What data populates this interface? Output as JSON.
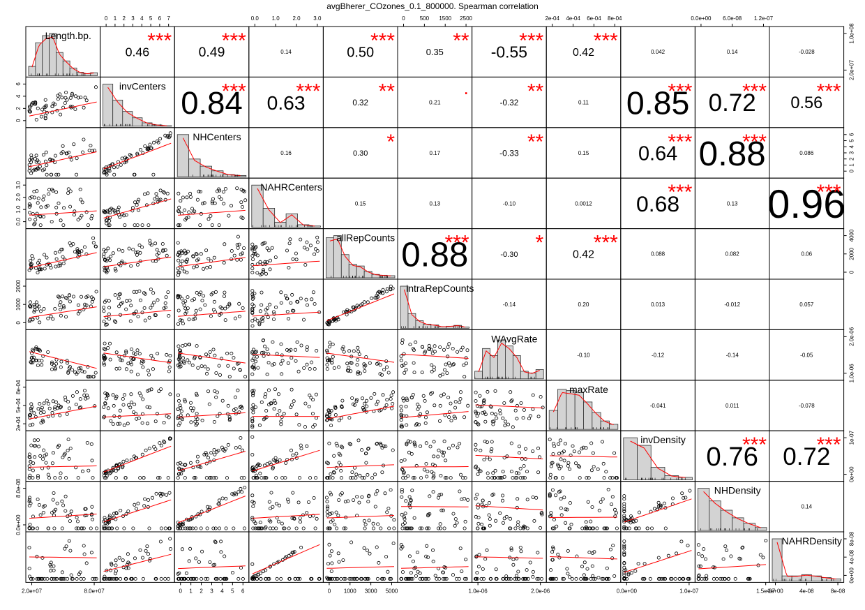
{
  "chart_data": {
    "type": "scatter",
    "subtype": "correlation-matrix",
    "title": "avgBherer_COzones_0.1_800000. Spearman correlation",
    "variables": [
      "Length.bp.",
      "invCenters",
      "NHCenters",
      "NAHRCenters",
      "allRepCounts",
      "intraRepCounts",
      "WAvgRate",
      "maxRate",
      "invDensity",
      "NHDensity",
      "NAHRDensity"
    ],
    "ranges": [
      [
        0,
        125000000.0
      ],
      [
        0,
        7
      ],
      [
        0,
        6
      ],
      [
        0,
        3
      ],
      [
        0,
        5000
      ],
      [
        0,
        2600
      ],
      [
        5e-07,
        2.6e-06
      ],
      [
        0.0002,
        0.00085
      ],
      [
        0,
        1.3e-07
      ],
      [
        0,
        1e-07
      ],
      [
        0,
        9e-08
      ]
    ],
    "correlations": [
      [
        "0.46",
        "0.49",
        "0.14",
        "0.50",
        "0.35",
        "-0.55",
        "0.42",
        "0.042",
        "0.14",
        "-0.028"
      ],
      [
        "0.84",
        "0.63",
        "0.32",
        "0.21",
        "-0.32",
        "0.11",
        "0.85",
        "0.72",
        "0.56"
      ],
      [
        "0.16",
        "0.30",
        "0.17",
        "-0.33",
        "0.15",
        "0.64",
        "0.88",
        "0.086"
      ],
      [
        "0.15",
        "0.13",
        "-0.10",
        "0.0012",
        "0.68",
        "0.13",
        "0.96"
      ],
      [
        "0.88",
        "-0.30",
        "0.42",
        "0.088",
        "0.082",
        "0.06"
      ],
      [
        "-0.14",
        "0.20",
        "0.013",
        "-0.012",
        "0.057"
      ],
      [
        "-0.10",
        "-0.12",
        "-0.14",
        "-0.05"
      ],
      [
        "-0.041",
        "0.011",
        "-0.078"
      ],
      [
        "0.76",
        "0.72"
      ],
      [
        "0.14"
      ]
    ],
    "significance": [
      [
        "***",
        "***",
        "",
        "***",
        "**",
        "***",
        "***",
        "",
        "",
        ""
      ],
      [
        "***",
        "***",
        "**",
        "·",
        "**",
        "",
        "***",
        "***",
        "***"
      ],
      [
        "",
        "*",
        "",
        "**",
        "",
        "***",
        "***",
        ""
      ],
      [
        "",
        "",
        "",
        "",
        "***",
        "",
        "***"
      ],
      [
        "***",
        "*",
        "***",
        "",
        "",
        ""
      ],
      [
        "",
        "",
        "",
        "",
        ""
      ],
      [
        "",
        "",
        "",
        ""
      ],
      [
        "",
        "",
        ""
      ],
      [
        "***",
        "***"
      ],
      [
        ""
      ]
    ],
    "top_axis_ticks": {
      "1": [
        "0",
        "1",
        "2",
        "3",
        "4",
        "5",
        "6",
        "7"
      ],
      "3": [
        "0.0",
        "1.0",
        "2.0",
        "3.0"
      ],
      "5": [
        "0",
        "500",
        "1500",
        "2500"
      ],
      "7": [
        "2e-04",
        "4e-04",
        "6e-04",
        "8e-04"
      ],
      "9": [
        "0.0e+00",
        "6.0e-08",
        "1.2e-07"
      ]
    },
    "bottom_axis_ticks": {
      "0": [
        "2.0e+07",
        "8.0e+07"
      ],
      "2": [
        "0",
        "1",
        "2",
        "3",
        "4",
        "5",
        "6"
      ],
      "4": [
        "0",
        "1000",
        "3000",
        "5000"
      ],
      "6": [
        "1.0e-06",
        "2.0e-06"
      ],
      "8": [
        "0.0e+00",
        "1.0e-07"
      ],
      "9": [
        "1.5e-07"
      ],
      "10": [
        "0e+00",
        "4e-08",
        "8e-08"
      ]
    },
    "left_axis_ticks": {
      "1": [
        "0",
        "2",
        "4",
        "6"
      ],
      "3": [
        "0.0",
        "1.0",
        "2.0",
        "3.0"
      ],
      "5": [
        "0",
        "1000",
        "2000"
      ],
      "7": [
        "2e-04",
        "5e-04",
        "8e-04"
      ],
      "9": [
        "0.0e+00",
        "8.0e-08"
      ]
    },
    "right_axis_ticks": {
      "0": [
        "2.0e+07",
        "1.0e+08"
      ],
      "2": [
        "0",
        "1",
        "2",
        "3",
        "4",
        "5",
        "6"
      ],
      "4": [
        "0",
        "2000",
        "4000"
      ],
      "6": [
        "1.0e-06",
        "2.0e-06"
      ],
      "8": [
        "0e+00",
        "1e-07"
      ],
      "10": [
        "0e+00",
        "4e-08",
        "8e-08"
      ]
    },
    "histograms": [
      [
        0.22,
        0.78,
        0.95,
        1.0,
        0.55,
        0.35,
        0.18,
        0.08,
        0.05,
        0.07
      ],
      [
        1.0,
        0.62,
        0.35,
        0.2,
        0.08,
        0.03,
        0.01
      ],
      [
        1.0,
        0.42,
        0.25,
        0.14,
        0.05,
        0.03
      ],
      [
        1.0,
        0.45,
        0.12,
        0.32,
        0.06,
        0.03
      ],
      [
        0.95,
        1.0,
        0.55,
        0.32,
        0.28,
        0.15,
        0.08,
        0.06,
        0.05
      ],
      [
        1.0,
        0.35,
        0.18,
        0.1,
        0.08,
        0.04,
        0.05,
        0.07,
        0.03
      ],
      [
        0.18,
        0.72,
        0.55,
        0.92,
        0.78,
        0.55,
        0.18,
        0.14,
        0.22
      ],
      [
        0.45,
        0.95,
        0.92,
        0.88,
        0.65,
        0.4,
        0.2,
        0.12
      ],
      [
        1.0,
        0.82,
        0.3,
        0.1,
        0.06
      ],
      [
        1.0,
        0.7,
        0.48,
        0.3,
        0.17,
        0.07
      ],
      [
        1.0,
        0.12,
        0.12,
        0.15,
        0.12,
        0.08,
        0.05
      ]
    ],
    "colors": {
      "points": "#000000",
      "smooth": "#ff0000",
      "stars": "#ff0000",
      "hist_fill": "#d3d3d3",
      "text": "#000000"
    }
  }
}
